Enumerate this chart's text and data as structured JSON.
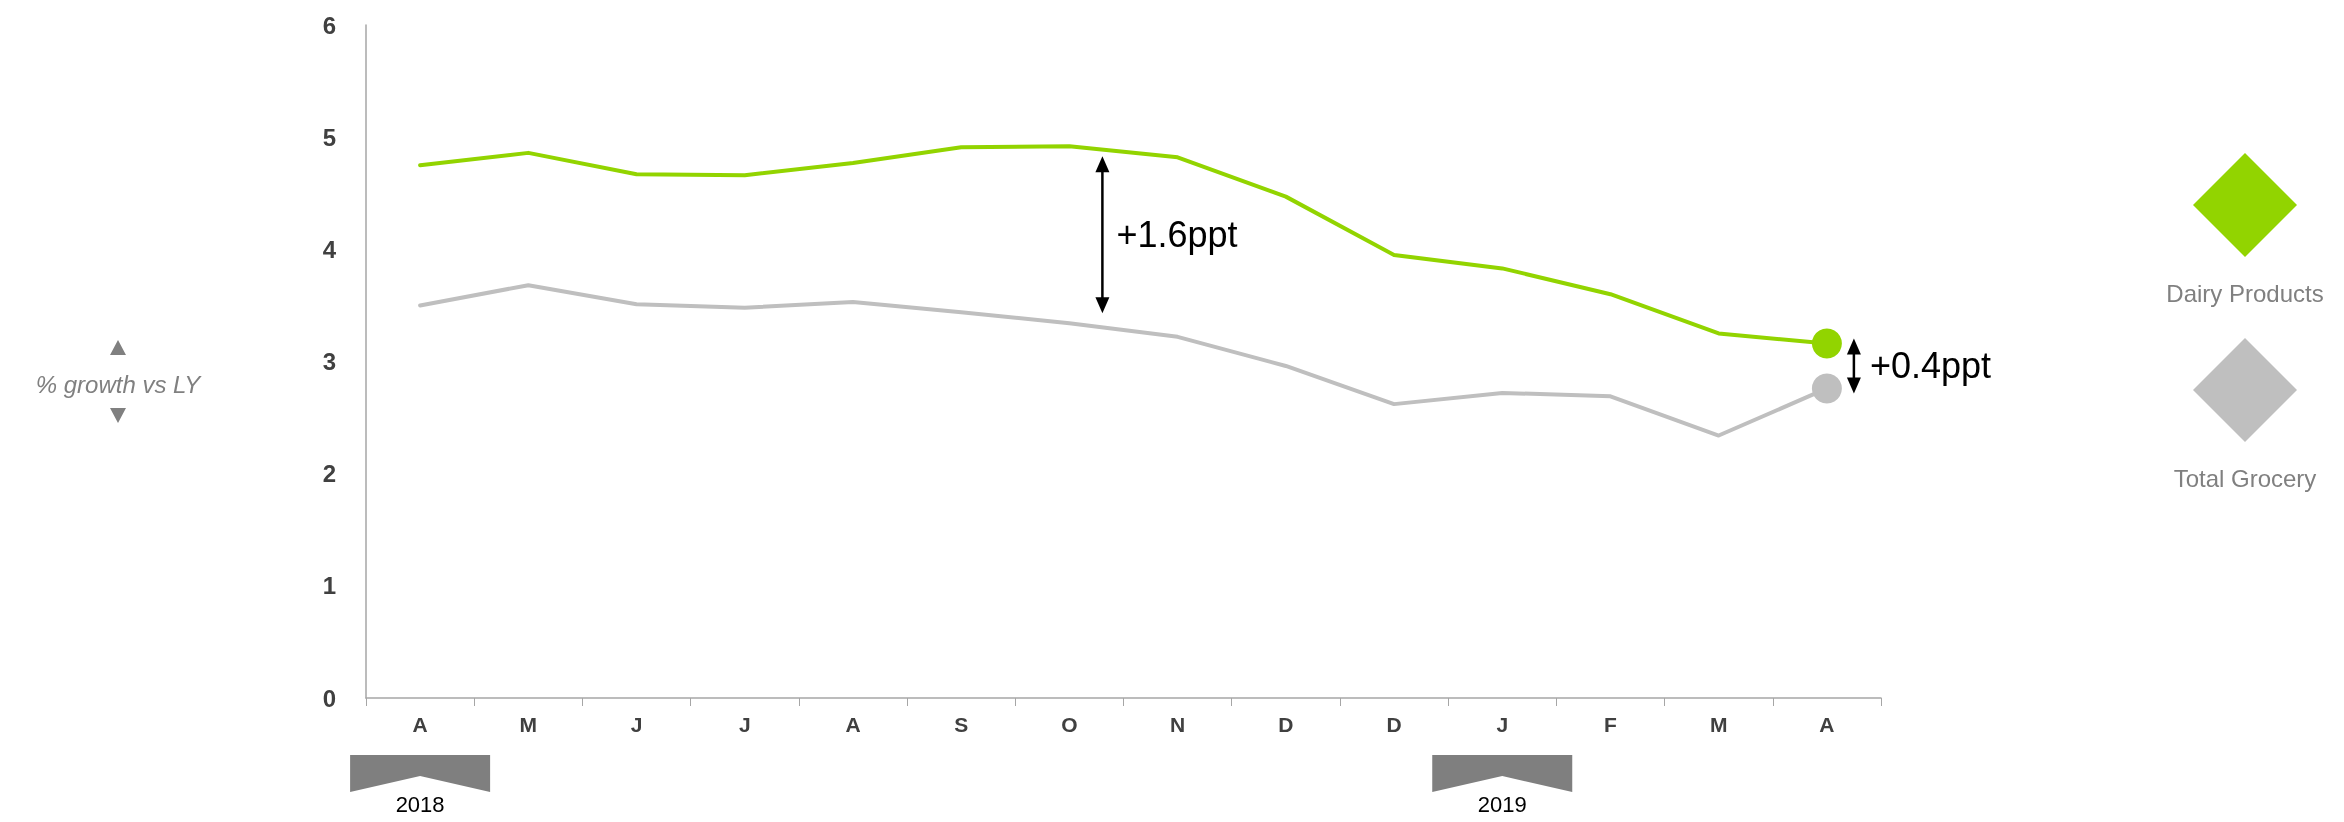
{
  "chart_data": {
    "type": "line",
    "categories": [
      "A",
      "M",
      "J",
      "J",
      "A",
      "S",
      "O",
      "N",
      "D",
      "D",
      "J",
      "F",
      "M",
      "A"
    ],
    "series": [
      {
        "name": "Dairy Products",
        "color": "#92d400",
        "values": [
          4.75,
          4.86,
          4.67,
          4.66,
          4.77,
          4.91,
          4.92,
          4.82,
          4.47,
          3.95,
          3.83,
          3.6,
          3.25,
          3.16
        ]
      },
      {
        "name": "Total Grocery",
        "color": "#bfbfbf",
        "values": [
          3.5,
          3.68,
          3.51,
          3.48,
          3.53,
          3.44,
          3.34,
          3.22,
          2.96,
          2.62,
          2.72,
          2.69,
          2.34,
          2.76
        ]
      }
    ],
    "ylim": [
      0,
      6
    ],
    "yticks": [
      0,
      1,
      2,
      3,
      4,
      5,
      6
    ],
    "grid": false,
    "legend": "right",
    "line_style": "solid",
    "annotations": [
      "+1.6ppt",
      "+0.4ppt",
      "% growth vs LY",
      "2018",
      "2019"
    ]
  }
}
